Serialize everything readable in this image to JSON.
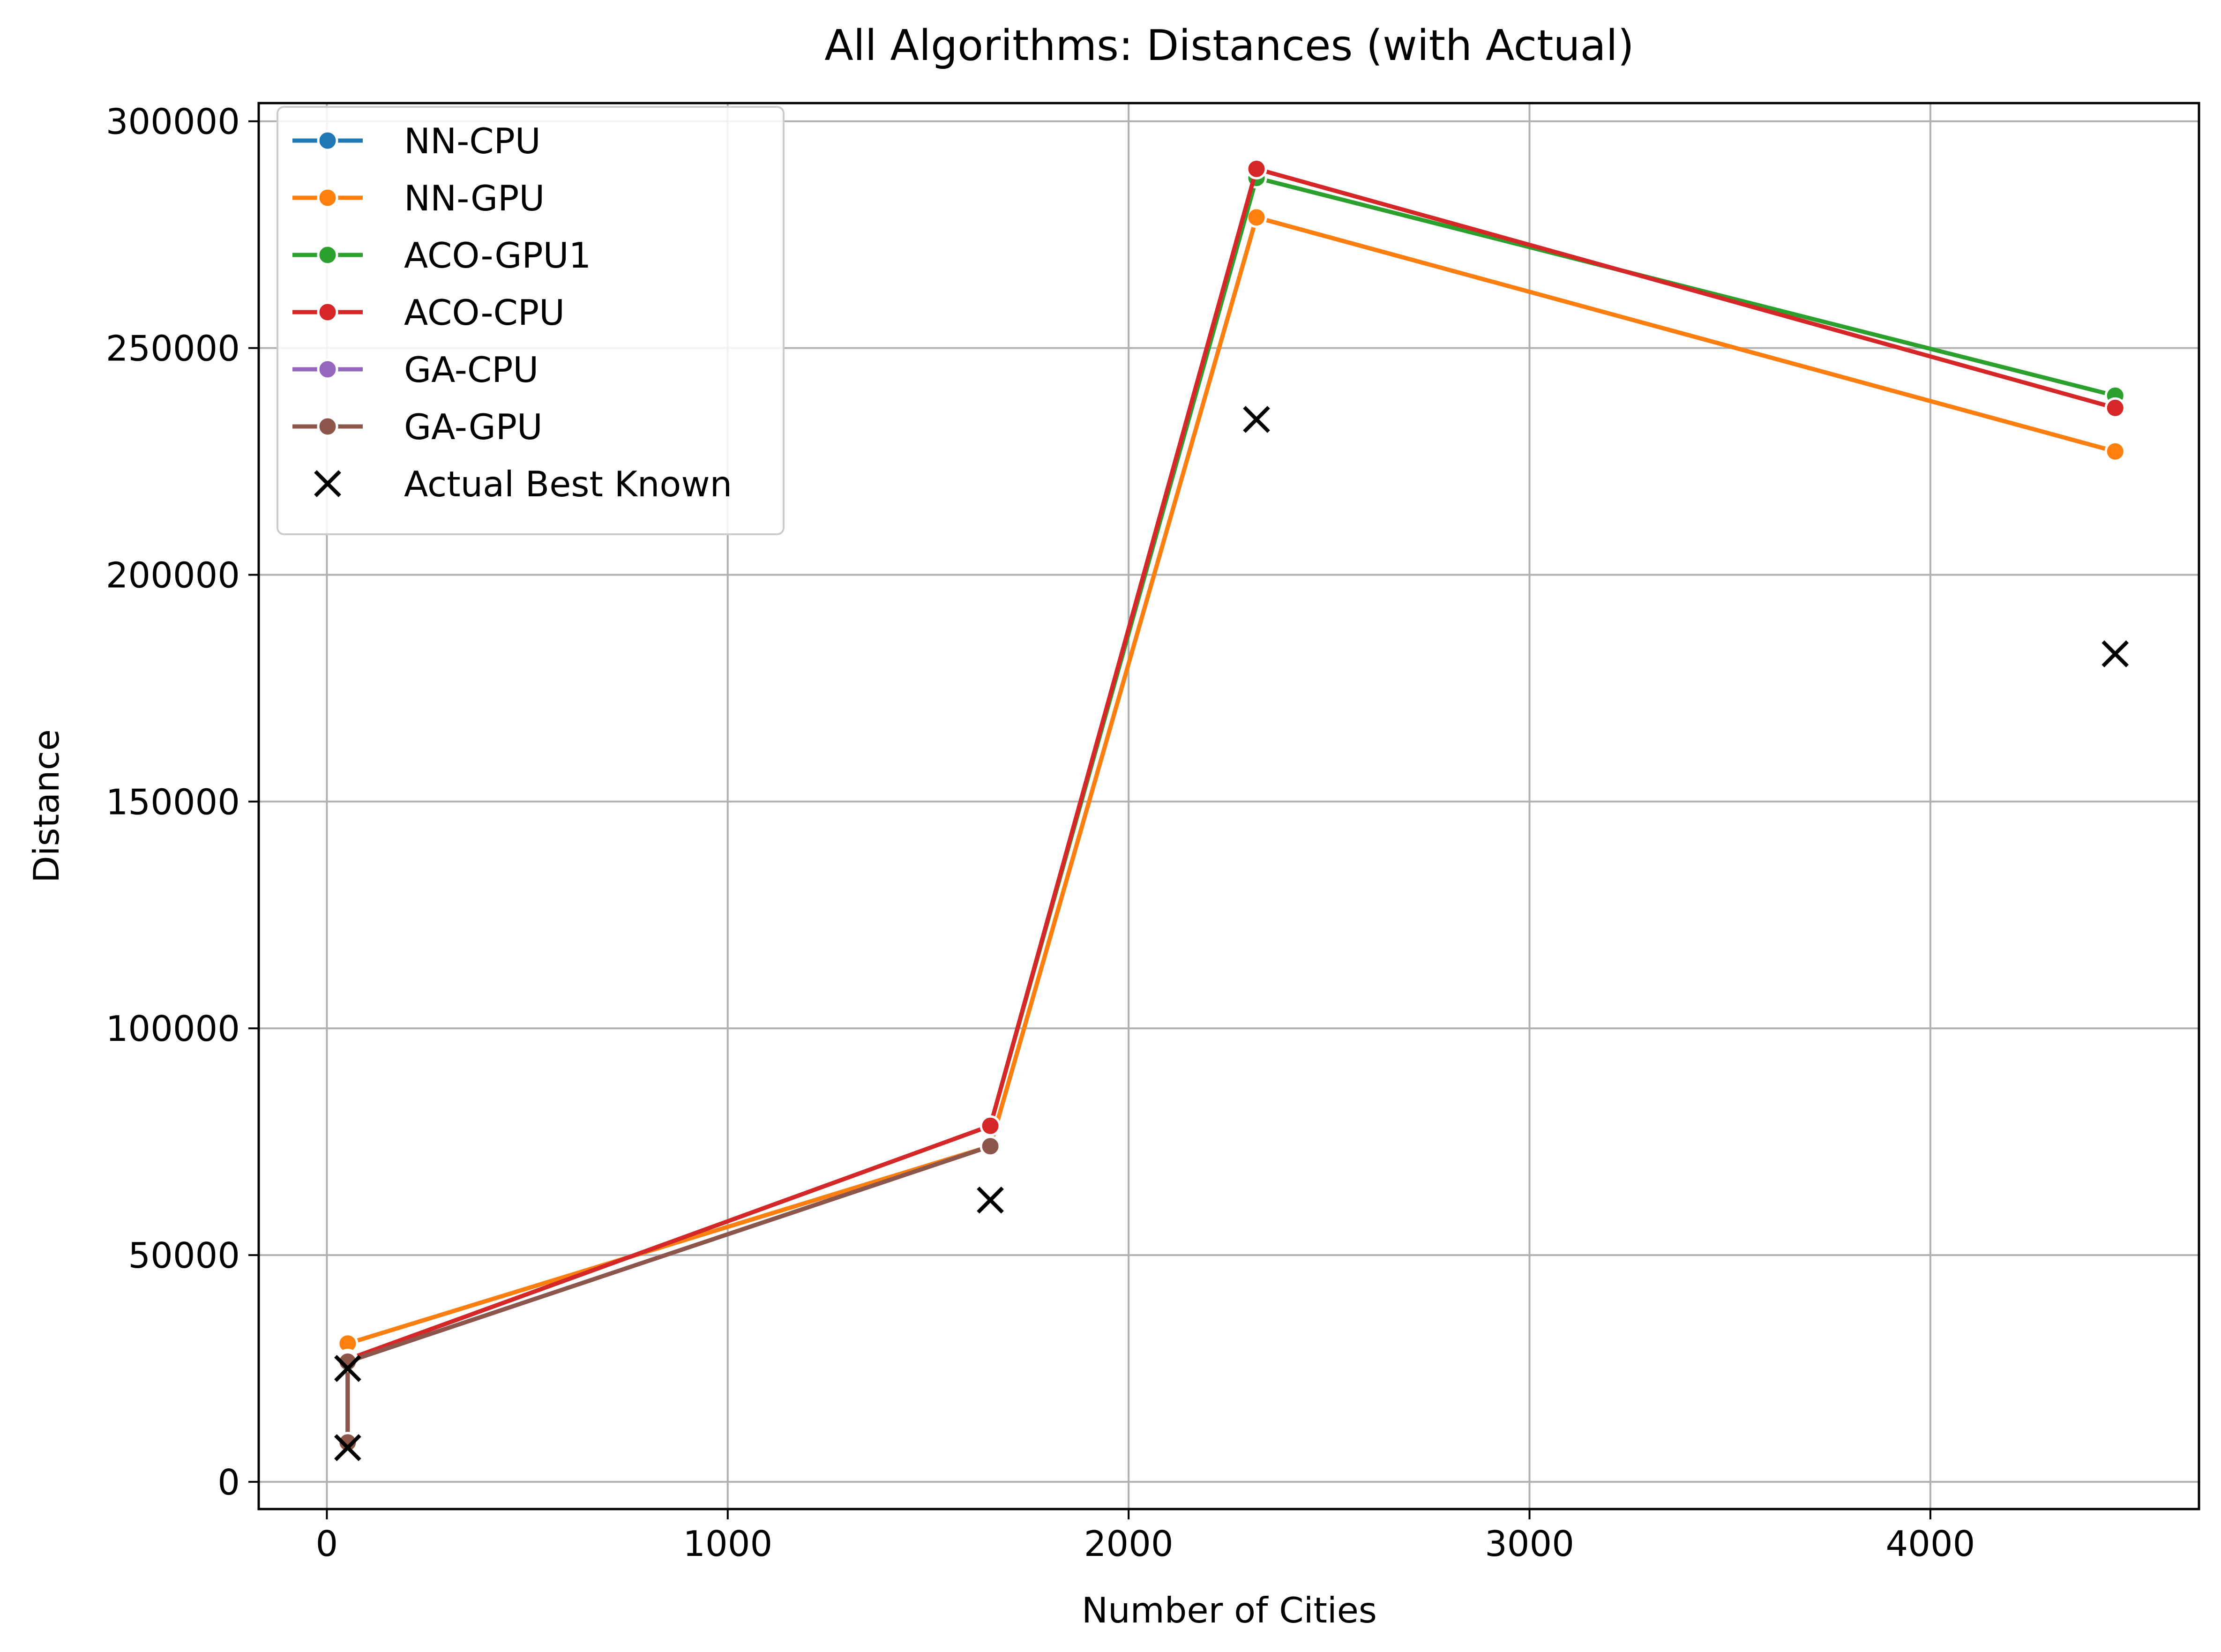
{
  "chart_data": {
    "type": "line",
    "title": "All Algorithms: Distances (with Actual)",
    "xlabel": "Number of Cities",
    "ylabel": "Distance",
    "xlim": [
      -170,
      4670
    ],
    "ylim": [
      -6000,
      304000
    ],
    "xticks": [
      0,
      1000,
      2000,
      3000,
      4000
    ],
    "yticks": [
      0,
      50000,
      100000,
      150000,
      200000,
      250000,
      300000
    ],
    "grid": true,
    "legend_position": "top-left",
    "x": [
      52,
      52,
      1655,
      2319,
      4461
    ],
    "series": [
      {
        "name": "NN-CPU",
        "color": "#1f77b4",
        "marker": "circle",
        "values": [
          8980,
          30500,
          74000,
          278800,
          227200
        ]
      },
      {
        "name": "NN-GPU",
        "color": "#ff7f0e",
        "marker": "circle",
        "values": [
          8980,
          30500,
          74000,
          278800,
          227200
        ]
      },
      {
        "name": "ACO-GPU1",
        "color": "#2ca02c",
        "marker": "circle",
        "values": [
          8300,
          27000,
          78500,
          287500,
          239500
        ]
      },
      {
        "name": "ACO-CPU",
        "color": "#d62728",
        "marker": "circle",
        "values": [
          8300,
          27000,
          78500,
          289500,
          236800
        ]
      },
      {
        "name": "GA-CPU",
        "color": "#9467bd",
        "marker": "circle",
        "values": [
          8700,
          26500,
          74000,
          null,
          null
        ]
      },
      {
        "name": "GA-GPU",
        "color": "#8c564b",
        "marker": "circle",
        "values": [
          8700,
          26500,
          74000,
          null,
          null
        ]
      }
    ],
    "actual": {
      "name": "Actual Best Known",
      "color": "#000000",
      "marker": "x",
      "points": [
        {
          "x": 52,
          "y": 7542
        },
        {
          "x": 52,
          "y": 25000
        },
        {
          "x": 1655,
          "y": 62128
        },
        {
          "x": 2319,
          "y": 234256
        },
        {
          "x": 4461,
          "y": 182566
        }
      ]
    }
  }
}
